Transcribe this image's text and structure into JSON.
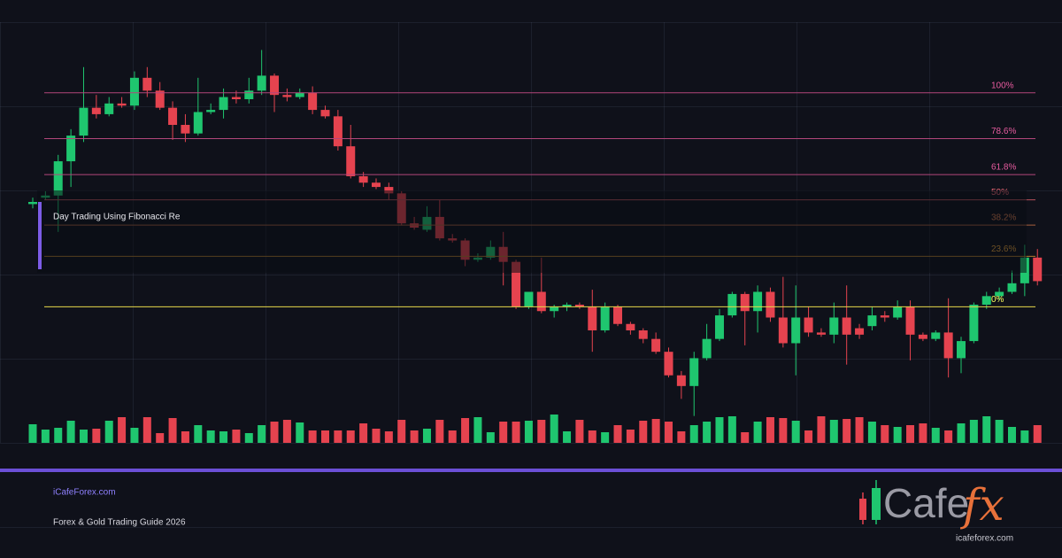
{
  "chart_data": {
    "type": "candlestick",
    "ylim": [
      -47,
      133
    ],
    "volume_lim": [
      0,
      100
    ],
    "up_color": "#1fc66f",
    "down_color": "#e5434f",
    "ohlc": [
      [
        48,
        51,
        46,
        49
      ],
      [
        51,
        54,
        50,
        52
      ],
      [
        52,
        71,
        35,
        68
      ],
      [
        68,
        83,
        56,
        80
      ],
      [
        80,
        112,
        77,
        93
      ],
      [
        93,
        99,
        88,
        90
      ],
      [
        90,
        98,
        89,
        95
      ],
      [
        95,
        98,
        93,
        94
      ],
      [
        94,
        110,
        92,
        107
      ],
      [
        107,
        112,
        98,
        101
      ],
      [
        101,
        105,
        92,
        93
      ],
      [
        93,
        96,
        78,
        85
      ],
      [
        85,
        90,
        77,
        81
      ],
      [
        81,
        107,
        80,
        91
      ],
      [
        91,
        95,
        90,
        92
      ],
      [
        92,
        102,
        88,
        98
      ],
      [
        98,
        101,
        95,
        97
      ],
      [
        97,
        107,
        95,
        101
      ],
      [
        101,
        120,
        99,
        108
      ],
      [
        108,
        109,
        91,
        99
      ],
      [
        99,
        102,
        96,
        98
      ],
      [
        98,
        102,
        97,
        100
      ],
      [
        100,
        103,
        90,
        92
      ],
      [
        92,
        94,
        88,
        89
      ],
      [
        89,
        92,
        73,
        75
      ],
      [
        75,
        85,
        60,
        61
      ],
      [
        61,
        63,
        56,
        58
      ],
      [
        58,
        60,
        55,
        56
      ],
      [
        56,
        58,
        50,
        53
      ],
      [
        53,
        54,
        38,
        39
      ],
      [
        39,
        42,
        36,
        37
      ],
      [
        36,
        47,
        35,
        42
      ],
      [
        42,
        50,
        31,
        32
      ],
      [
        32,
        34,
        30,
        31
      ],
      [
        31,
        32,
        19,
        22
      ],
      [
        22,
        25,
        21,
        23
      ],
      [
        23,
        31,
        22,
        28
      ],
      [
        28,
        35,
        10,
        21
      ],
      [
        21,
        22,
        -1,
        0
      ],
      [
        0,
        7,
        -1,
        7
      ],
      [
        7,
        23,
        -3,
        -2
      ],
      [
        -2,
        1,
        -5,
        0
      ],
      [
        0,
        2,
        -2,
        1
      ],
      [
        1,
        2,
        -1,
        0
      ],
      [
        0,
        8,
        -21,
        -11
      ],
      [
        -11,
        2,
        -12,
        0
      ],
      [
        0,
        1,
        -9,
        -8
      ],
      [
        -8,
        -7,
        -13,
        -11
      ],
      [
        -11,
        -10,
        -17,
        -15
      ],
      [
        -15,
        -12,
        -22,
        -21
      ],
      [
        -21,
        -19,
        -33,
        -32
      ],
      [
        -32,
        -30,
        -43,
        -37
      ],
      [
        -37,
        -21,
        -51,
        -24
      ],
      [
        -24,
        -8,
        -25,
        -15
      ],
      [
        -15,
        -1,
        -16,
        -4
      ],
      [
        -4,
        7,
        -5,
        6
      ],
      [
        6,
        7,
        -18,
        -2
      ],
      [
        -2,
        10,
        -12,
        7
      ],
      [
        7,
        9,
        -7,
        -5
      ],
      [
        -5,
        14,
        -19,
        -17
      ],
      [
        -17,
        10,
        -32,
        -5
      ],
      [
        -5,
        0,
        -14,
        -12
      ],
      [
        -12,
        -10,
        -14,
        -13
      ],
      [
        -13,
        2,
        -17,
        -5
      ],
      [
        -5,
        10,
        -27,
        -13
      ],
      [
        -10,
        -8,
        -15,
        -13
      ],
      [
        -9,
        0,
        -11,
        -4
      ],
      [
        -4,
        -2,
        -7,
        -5
      ],
      [
        -5,
        3,
        -6,
        0
      ],
      [
        0,
        3,
        -25,
        -13
      ],
      [
        -13,
        -12,
        -16,
        -15
      ],
      [
        -15,
        -11,
        -16,
        -12
      ],
      [
        -12,
        4,
        -33,
        -24
      ],
      [
        -24,
        -14,
        -31,
        -16
      ],
      [
        -16,
        2,
        -17,
        1
      ],
      [
        1,
        7,
        -1,
        5
      ],
      [
        5,
        9,
        3,
        7
      ],
      [
        7,
        17,
        6,
        11
      ],
      [
        11,
        29,
        5,
        23
      ],
      [
        23,
        27,
        10,
        12
      ]
    ],
    "volume": [
      21,
      15,
      17,
      25,
      15,
      16,
      25,
      29,
      17,
      29,
      11,
      28,
      13,
      20,
      14,
      13,
      15,
      11,
      20,
      24,
      26,
      23,
      14,
      14,
      14,
      14,
      22,
      16,
      13,
      26,
      14,
      16,
      26,
      14,
      28,
      29,
      12,
      24,
      24,
      25,
      26,
      32,
      13,
      26,
      14,
      12,
      20,
      15,
      25,
      27,
      24,
      13,
      20,
      24,
      29,
      30,
      12,
      24,
      29,
      28,
      25,
      14,
      30,
      26,
      27,
      29,
      24,
      20,
      18,
      20,
      22,
      17,
      14,
      22,
      26,
      30,
      26,
      18,
      14,
      20
    ],
    "fib_levels": [
      {
        "value": 100,
        "label": "100%",
        "color": "#b2467a"
      },
      {
        "value": 78.6,
        "label": "78.6%",
        "color": "#b2467a"
      },
      {
        "value": 61.8,
        "label": "61.8%",
        "color": "#b2467a"
      },
      {
        "value": 50,
        "label": "50%",
        "color": "#b8505a"
      },
      {
        "value": 38.2,
        "label": "38.2%",
        "color": "#a8603c"
      },
      {
        "value": 23.6,
        "label": "23.6%",
        "color": "#b07c2c"
      },
      {
        "value": 0,
        "label": "0%",
        "color": "#e8d84a"
      }
    ],
    "annotation": "Day Trading Using Fibonacci Re"
  },
  "footer": {
    "site": "iCafeForex.com",
    "subtitle": "Forex & Gold Trading Guide 2026"
  },
  "logo": {
    "word": "Cafe",
    "accent": "fx",
    "url": "icafeforex.com"
  }
}
